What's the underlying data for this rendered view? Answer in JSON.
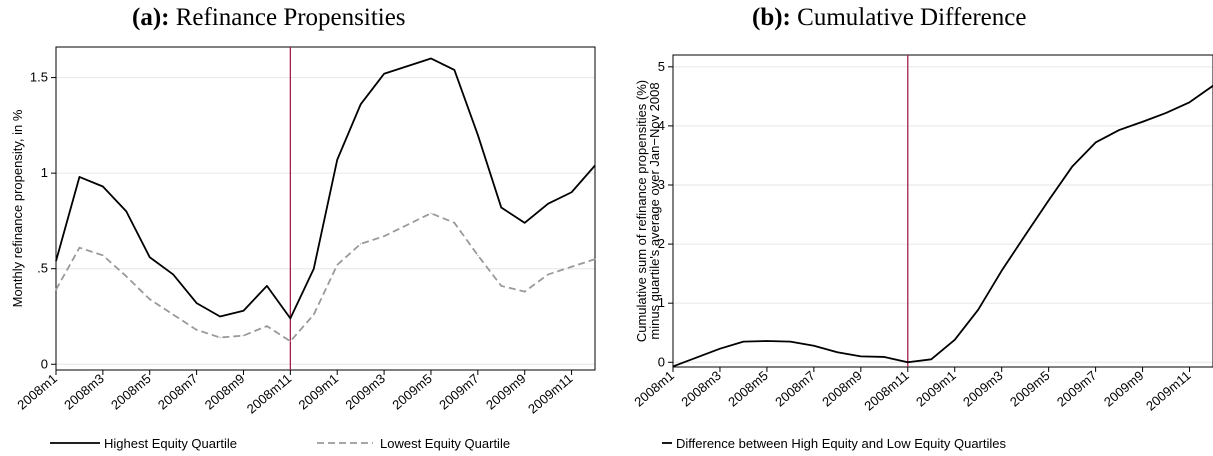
{
  "panels": {
    "a": {
      "prefix": "(a):",
      "title": "Refinance Propensities"
    },
    "b": {
      "prefix": "(b):",
      "title": "Cumulative Difference"
    }
  },
  "colors": {
    "high": "#000000",
    "low": "#9a9a9a",
    "vline": "#a0204a",
    "grid": "#e6e6e6",
    "frame": "#000000"
  },
  "chart_data": [
    {
      "type": "line",
      "ylabel": "Monthly refinance propensity, in %",
      "xlabel": "",
      "x": [
        "2008m1",
        "2008m2",
        "2008m3",
        "2008m4",
        "2008m5",
        "2008m6",
        "2008m7",
        "2008m8",
        "2008m9",
        "2008m10",
        "2008m11",
        "2008m12",
        "2009m1",
        "2009m2",
        "2009m3",
        "2009m4",
        "2009m5",
        "2009m6",
        "2009m7",
        "2009m8",
        "2009m9",
        "2009m10",
        "2009m11",
        "2009m12"
      ],
      "xticks": [
        "2008m1",
        "2008m3",
        "2008m5",
        "2008m7",
        "2008m9",
        "2008m11",
        "2009m1",
        "2009m3",
        "2009m5",
        "2009m7",
        "2009m9",
        "2009m11"
      ],
      "yticks": [
        {
          "value": 0,
          "label": "0"
        },
        {
          "value": 0.5,
          "label": ".5"
        },
        {
          "value": 1,
          "label": "1"
        },
        {
          "value": 1.5,
          "label": "1.5"
        }
      ],
      "ylim": [
        -0.03,
        1.66
      ],
      "vline": "2008m11",
      "grid": true,
      "legend_position": "bottom",
      "series": [
        {
          "name": "Highest Equity Quartile",
          "style": "solid",
          "values": [
            0.54,
            0.98,
            0.93,
            0.8,
            0.56,
            0.47,
            0.32,
            0.25,
            0.28,
            0.41,
            0.24,
            0.5,
            1.07,
            1.36,
            1.52,
            1.56,
            1.6,
            1.54,
            1.2,
            0.82,
            0.74,
            0.84,
            0.9,
            1.04
          ]
        },
        {
          "name": "Lowest Equity Quartile",
          "style": "dashed",
          "values": [
            0.39,
            0.61,
            0.57,
            0.46,
            0.34,
            0.26,
            0.18,
            0.14,
            0.15,
            0.2,
            0.12,
            0.26,
            0.52,
            0.63,
            0.67,
            0.73,
            0.79,
            0.74,
            0.57,
            0.41,
            0.38,
            0.47,
            0.51,
            0.55
          ]
        }
      ]
    },
    {
      "type": "line",
      "ylabel_lines": [
        "Cumulative sum of refinance propensities (%)",
        "minus quartile's average over Jan−Nov 2008"
      ],
      "xlabel": "",
      "x": [
        "2008m1",
        "2008m2",
        "2008m3",
        "2008m4",
        "2008m5",
        "2008m6",
        "2008m7",
        "2008m8",
        "2008m9",
        "2008m10",
        "2008m11",
        "2008m12",
        "2009m1",
        "2009m2",
        "2009m3",
        "2009m4",
        "2009m5",
        "2009m6",
        "2009m7",
        "2009m8",
        "2009m9",
        "2009m10",
        "2009m11",
        "2009m12"
      ],
      "xticks": [
        "2008m1",
        "2008m3",
        "2008m5",
        "2008m7",
        "2008m9",
        "2008m11",
        "2009m1",
        "2009m3",
        "2009m5",
        "2009m7",
        "2009m9",
        "2009m11"
      ],
      "yticks": [
        {
          "value": 0,
          "label": "0"
        },
        {
          "value": 1,
          "label": "1"
        },
        {
          "value": 2,
          "label": "2"
        },
        {
          "value": 3,
          "label": "3"
        },
        {
          "value": 4,
          "label": "4"
        },
        {
          "value": 5,
          "label": "5"
        }
      ],
      "ylim": [
        -0.08,
        5.2
      ],
      "vline": "2008m11",
      "grid": true,
      "legend_position": "bottom",
      "series": [
        {
          "name": "Difference between High Equity and Low Equity Quartiles",
          "style": "solid",
          "values": [
            -0.07,
            0.08,
            0.23,
            0.35,
            0.36,
            0.35,
            0.28,
            0.17,
            0.1,
            0.09,
            0.0,
            0.05,
            0.38,
            0.89,
            1.55,
            2.15,
            2.74,
            3.31,
            3.72,
            3.93,
            4.07,
            4.22,
            4.4,
            4.68
          ]
        }
      ]
    }
  ]
}
